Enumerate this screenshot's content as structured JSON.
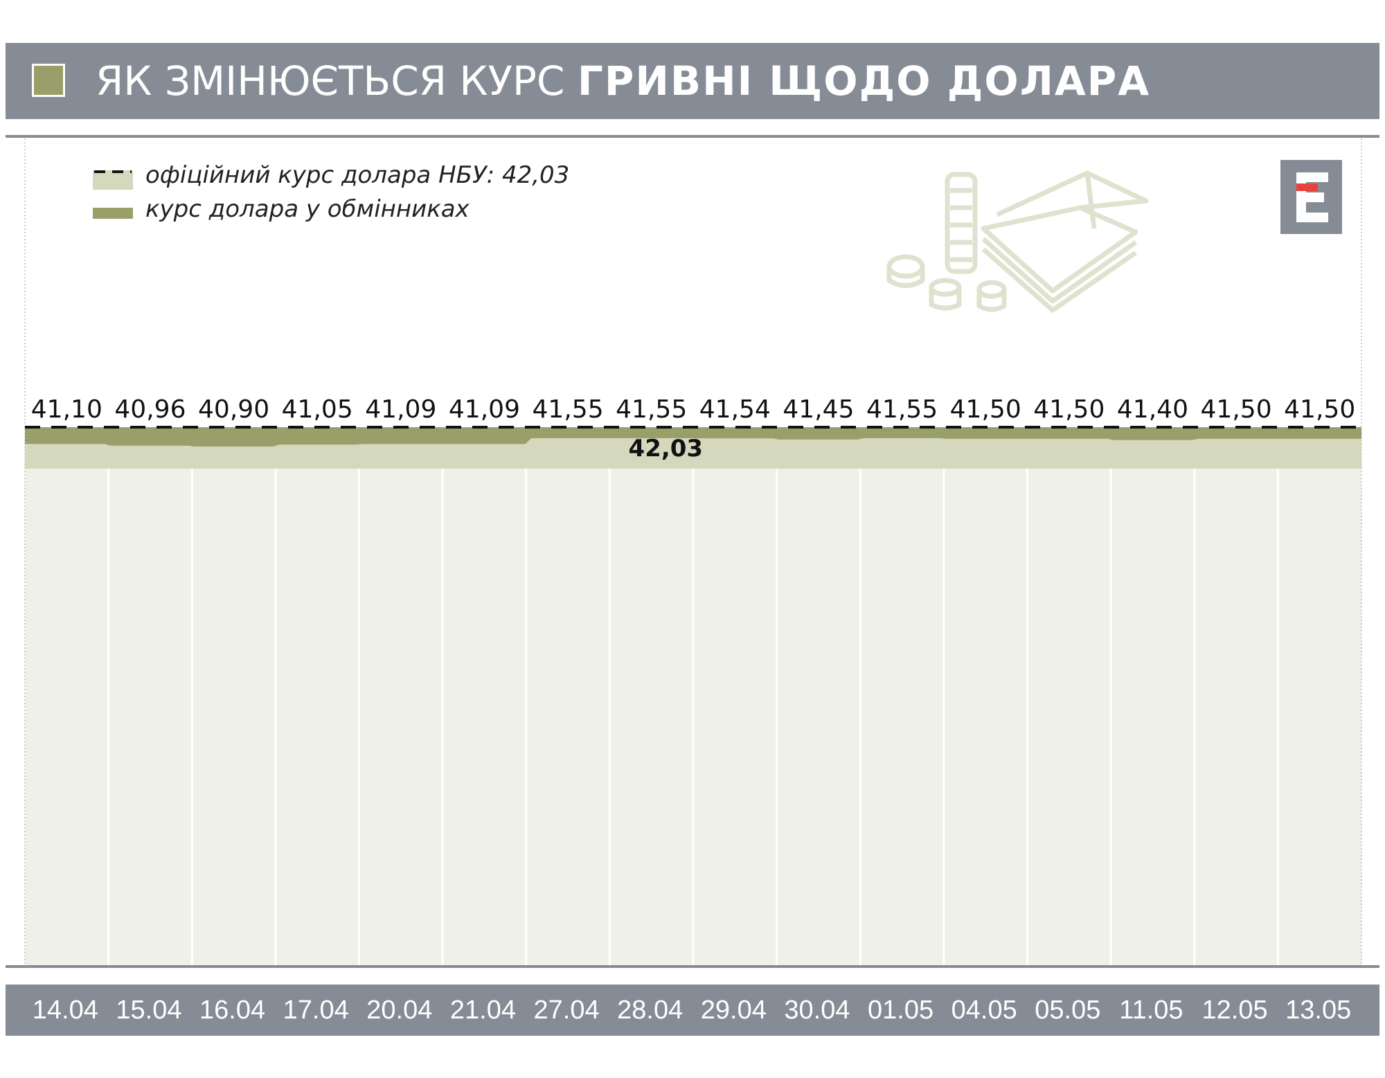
{
  "header": {
    "title_light": "ЯК ЗМІНЮЄТЬСЯ КУРС ",
    "title_bold": "ГРИВНІ ЩОДО ДОЛАРА",
    "color": "#868c95",
    "swatch_color": "#9a9f69"
  },
  "legend": {
    "official_label": "офіційний курс долара НБУ: 42,03",
    "exchange_label": "курс долара у обмінниках"
  },
  "chart_data": {
    "type": "line",
    "title": "ЯК ЗМІНЮЄТЬСЯ КУРС ГРИВНІ ЩОДО ДОЛАРА",
    "categories": [
      "14.04",
      "15.04",
      "16.04",
      "17.04",
      "20.04",
      "21.04",
      "27.04",
      "28.04",
      "29.04",
      "30.04",
      "01.05",
      "04.05",
      "05.05",
      "11.05",
      "12.05",
      "13.05"
    ],
    "series": [
      {
        "name": "курс долара у обмінниках",
        "values": [
          41.1,
          40.96,
          40.9,
          41.05,
          41.09,
          41.09,
          41.55,
          41.55,
          41.54,
          41.45,
          41.55,
          41.5,
          41.5,
          41.4,
          41.5,
          41.5
        ],
        "labels": [
          "41,10",
          "40,96",
          "40,90",
          "41,05",
          "41,09",
          "41,09",
          "41,55",
          "41,55",
          "41,54",
          "41,45",
          "41,55",
          "41,50",
          "41,50",
          "41,40",
          "41,50",
          "41,50"
        ],
        "color": "#9a9f69"
      },
      {
        "name": "офіційний курс долара НБУ: 42,03",
        "value": 42.03,
        "label": "42,03",
        "style": "dashed",
        "color": "#111111"
      }
    ],
    "ylim": [
      0,
      42.03
    ],
    "grid": true,
    "legend_position": "top-left",
    "colors": {
      "area_top": "#d4d8bd",
      "area_bottom": "#eff0e8",
      "grid": "#ffffff"
    }
  }
}
